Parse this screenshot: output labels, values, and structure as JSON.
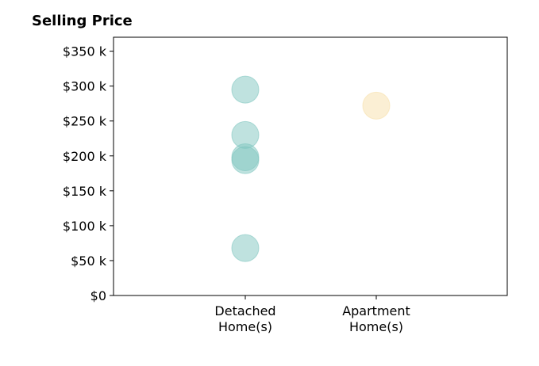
{
  "chart_data": {
    "type": "scatter",
    "title": "Selling Price",
    "categories": [
      "Detached\nHome(s)",
      "Apartment\nHome(s)"
    ],
    "series": [
      {
        "category": "Detached\nHome(s)",
        "values": [
          295000,
          230000,
          198000,
          194000,
          68000
        ],
        "color": "#80c6c0"
      },
      {
        "category": "Apartment\nHome(s)",
        "values": [
          272000
        ],
        "color": "#f7dfa9"
      }
    ],
    "ylim": [
      0,
      370000
    ],
    "yticks": [
      0,
      50000,
      100000,
      150000,
      200000,
      250000,
      300000,
      350000
    ],
    "ytick_labels": [
      "$0",
      "$50 k",
      "$100 k",
      "$150 k",
      "$200 k",
      "$250 k",
      "$300 k",
      "$350 k"
    ],
    "grid": false,
    "legend": "none"
  }
}
